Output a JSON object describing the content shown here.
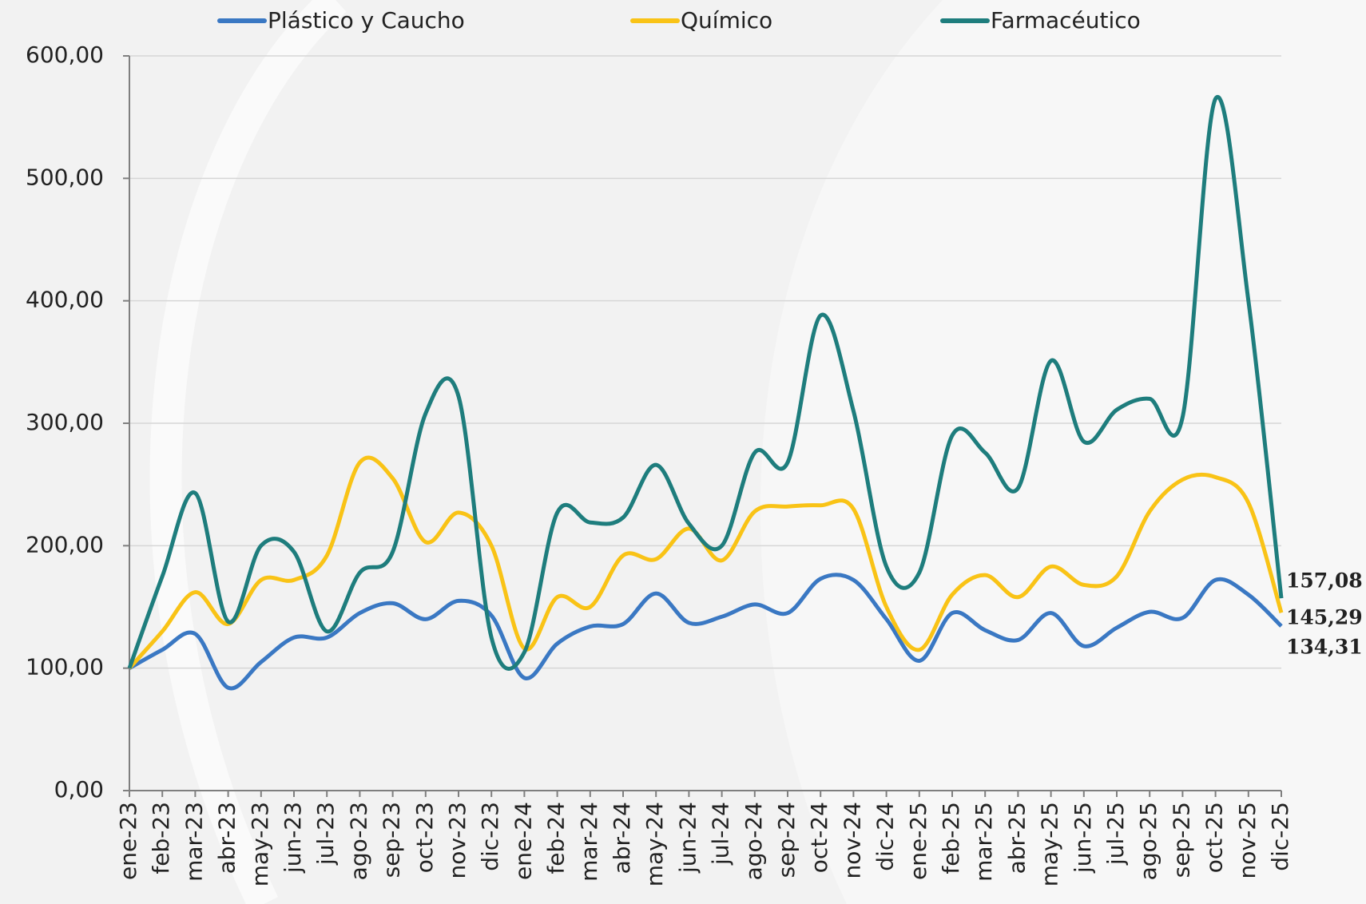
{
  "chart_data": {
    "type": "line",
    "categories": [
      "ene-23",
      "feb-23",
      "mar-23",
      "abr-23",
      "may-23",
      "jun-23",
      "jul-23",
      "ago-23",
      "sep-23",
      "oct-23",
      "nov-23",
      "dic-23",
      "ene-24",
      "feb-24",
      "mar-24",
      "abr-24",
      "may-24",
      "jun-24",
      "jul-24",
      "ago-24",
      "sep-24",
      "oct-24",
      "nov-24",
      "dic-24",
      "ene-25",
      "feb-25",
      "mar-25",
      "abr-25",
      "may-25",
      "jun-25",
      "jul-25",
      "ago-25",
      "sep-25",
      "oct-25",
      "nov-25",
      "dic-25"
    ],
    "series": [
      {
        "name": "Plástico y Caucho",
        "color": "#3a78c3",
        "values": [
          100,
          115,
          128,
          84,
          105,
          125,
          125,
          145,
          153,
          140,
          155,
          143,
          92,
          120,
          134,
          136,
          161,
          137,
          142,
          152,
          145,
          173,
          172,
          140,
          106,
          145,
          131,
          123,
          145,
          118,
          133,
          146,
          141,
          172,
          160,
          134.31
        ],
        "value_labels": [
          null,
          null,
          null,
          null,
          null,
          null,
          null,
          null,
          null,
          null,
          null,
          null,
          null,
          null,
          null,
          null,
          null,
          null,
          null,
          null,
          null,
          null,
          null,
          null,
          null,
          null,
          null,
          null,
          null,
          null,
          null,
          null,
          null,
          null,
          null,
          "134,31"
        ]
      },
      {
        "name": "Químico",
        "color": "#f9c316",
        "values": [
          100,
          130,
          162,
          136,
          172,
          172,
          192,
          268,
          255,
          203,
          227,
          200,
          116,
          158,
          150,
          192,
          189,
          214,
          188,
          228,
          232,
          233,
          230,
          150,
          115,
          160,
          176,
          158,
          183,
          168,
          175,
          228,
          254,
          256,
          235,
          145.29
        ],
        "value_labels": [
          null,
          null,
          null,
          null,
          null,
          null,
          null,
          null,
          null,
          null,
          null,
          null,
          null,
          null,
          null,
          null,
          null,
          null,
          null,
          null,
          null,
          null,
          null,
          null,
          null,
          null,
          null,
          null,
          null,
          null,
          null,
          null,
          null,
          null,
          null,
          "145,29"
        ]
      },
      {
        "name": "Farmacéutico",
        "color": "#1e7d7d",
        "values": [
          100,
          175,
          243,
          138,
          200,
          195,
          130,
          178,
          195,
          308,
          322,
          125,
          113,
          227,
          219,
          223,
          266,
          218,
          200,
          276,
          268,
          388,
          310,
          183,
          178,
          290,
          276,
          247,
          351,
          285,
          311,
          320,
          305,
          565,
          400,
          157.08
        ],
        "value_labels": [
          null,
          null,
          null,
          null,
          null,
          null,
          null,
          null,
          null,
          null,
          null,
          null,
          null,
          null,
          null,
          null,
          null,
          null,
          null,
          null,
          null,
          null,
          null,
          null,
          null,
          null,
          null,
          null,
          null,
          null,
          null,
          null,
          null,
          null,
          null,
          "157,08"
        ]
      }
    ],
    "ylim": [
      0,
      600
    ],
    "yticks": [
      {
        "value": 0,
        "label": "0,00"
      },
      {
        "value": 100,
        "label": "100,00"
      },
      {
        "value": 200,
        "label": "200,00"
      },
      {
        "value": 300,
        "label": "300,00"
      },
      {
        "value": 400,
        "label": "400,00"
      },
      {
        "value": 500,
        "label": "500,00"
      },
      {
        "value": 600,
        "label": "600,00"
      }
    ],
    "grid": true,
    "legend": "top"
  }
}
